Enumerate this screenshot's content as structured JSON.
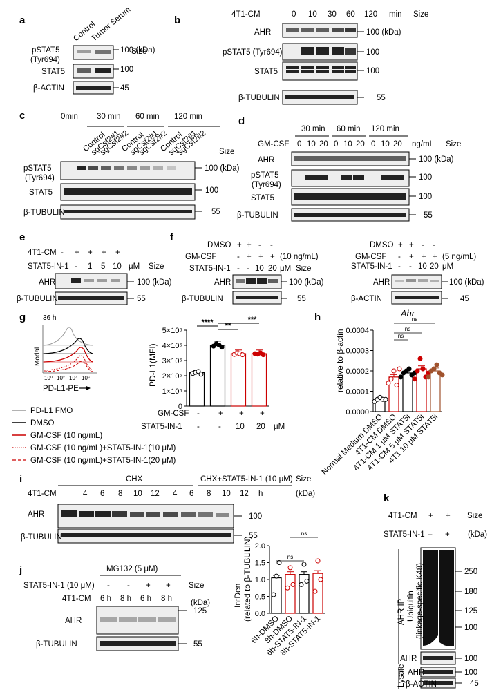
{
  "a": {
    "panel": "a",
    "cols": [
      "Control",
      "Tumor Serum"
    ],
    "size": "Size",
    "rows": [
      {
        "label": "pSTAT5",
        "sub": "(Tyr694)",
        "size": "100 (kDa)"
      },
      {
        "label": "STAT5",
        "size": "100"
      },
      {
        "label": "β-ACTIN",
        "size": "45"
      }
    ]
  },
  "b": {
    "panel": "b",
    "treat": "4T1-CM",
    "times": [
      "0",
      "10",
      "30",
      "60",
      "120"
    ],
    "unit": "min",
    "size": "Size",
    "rows": [
      {
        "label": "AHR",
        "size": "100 (kDa)"
      },
      {
        "label": "pSTAT5 (Tyr694)",
        "size": "100"
      },
      {
        "label": "STAT5",
        "size": "100"
      },
      {
        "label": "β-TUBULIN",
        "size": "55"
      }
    ]
  },
  "c": {
    "panel": "c",
    "groups": [
      "0min",
      "30 min",
      "60 min",
      "120 min"
    ],
    "lanes": [
      "Control",
      "sgCsf2#1",
      "sgCsf2#2",
      "Control",
      "sgCsf2#1",
      "sgCsf2#2",
      "Control",
      "sgCsf2#1",
      "sgCsf2#2"
    ],
    "size": "Size",
    "rows": [
      {
        "label": "pSTAT5",
        "sub": "(Tyr694)",
        "size": "100 (kDa)"
      },
      {
        "label": "STAT5",
        "size": "100"
      },
      {
        "label": "β-TUBULIN",
        "size": "55"
      }
    ]
  },
  "d": {
    "panel": "d",
    "groups": [
      "30 min",
      "60 min",
      "120 min"
    ],
    "treat": "GM-CSF",
    "doses": [
      "0",
      "10",
      "20",
      "0",
      "10",
      "20",
      "0",
      "10",
      "20"
    ],
    "unit": "ng/mL",
    "size": "Size",
    "rows": [
      {
        "label": "AHR",
        "size": "100 (kDa)"
      },
      {
        "label": "pSTAT5",
        "sub": "(Tyr694)",
        "size": "100"
      },
      {
        "label": "STAT5",
        "size": "100"
      },
      {
        "label": "β-TUBULIN",
        "size": "55"
      }
    ]
  },
  "e": {
    "panel": "e",
    "r1": "4T1-CM",
    "r1v": [
      "-",
      "+",
      "+",
      "+",
      "+"
    ],
    "r2": "STAT5-IN-1",
    "r2v": [
      "-",
      "-",
      "1",
      "5",
      "10"
    ],
    "unit": "μM",
    "size": "Size",
    "rows": [
      {
        "label": "AHR",
        "size": "100 (kDa)"
      },
      {
        "label": "β-TUBULIN",
        "size": "55"
      }
    ]
  },
  "f": {
    "panel": "f",
    "left": {
      "r1": "DMSO",
      "r1v": [
        "+",
        "+",
        "-",
        "-"
      ],
      "r2": "GM-CSF",
      "r2v": [
        "-",
        "+",
        "+",
        "+"
      ],
      "r2n": "(10 ng/mL)",
      "r3": "STAT5-IN-1",
      "r3v": [
        "-",
        "-",
        "10",
        "20"
      ],
      "unit": "μM",
      "size": "Size",
      "rows": [
        {
          "label": "AHR",
          "size": "100 (kDa)"
        },
        {
          "label": "β-TUBULIN",
          "size": "55"
        }
      ]
    },
    "right": {
      "r1": "DMSO",
      "r1v": [
        "+",
        "+",
        "-",
        "-"
      ],
      "r2": "GM-CSF",
      "r2v": [
        "-",
        "+",
        "+",
        "+"
      ],
      "r2n": "(5 ng/mL)",
      "r3": "STAT5-IN-1",
      "r3v": [
        "-",
        "-",
        "10",
        "20"
      ],
      "unit": "μM",
      "size": "Size",
      "rows": [
        {
          "label": "AHR",
          "size": "100 (kDa)"
        },
        {
          "label": "β-ACTIN",
          "size": "45"
        }
      ]
    }
  },
  "g": {
    "panel": "g",
    "time": "36 h",
    "hist_y": "Modal",
    "hist_x": "PD-L1-PE",
    "hist_ticks": [
      "10⁰",
      "10²",
      "10⁴",
      "10⁶"
    ],
    "legend": [
      "PD-L1 FMO",
      "DMSO",
      "GM-CSF (10 ng/mL)",
      "GM-CSF (10 ng/mL)+STAT5-IN-1(10 μM)",
      "GM-CSF (10 ng/mL)+STAT5-IN-1(20 μM)"
    ],
    "r1": "GM-CSF",
    "r1v": [
      "-",
      "+",
      "+",
      "+"
    ],
    "r2": "STAT5-IN-1",
    "r2v": [
      "-",
      "-",
      "10",
      "20"
    ],
    "unit": "μM",
    "sig": [
      "****",
      "**",
      "***"
    ]
  },
  "h": {
    "panel": "h",
    "sig": [
      "ns",
      "ns",
      "ns"
    ]
  },
  "i": {
    "panel": "i",
    "g1": "CHX",
    "g2": "CHX+STAT5-IN-1 (10 μM)",
    "size": "Size",
    "treat": "4T1-CM",
    "times": [
      "4",
      "6",
      "8",
      "10",
      "12",
      "4",
      "6",
      "8",
      "10",
      "12"
    ],
    "unit": "h",
    "kda": "(kDa)",
    "rows": [
      {
        "label": "AHR",
        "size": "100"
      },
      {
        "label": "β-TUBULIN",
        "size": "55"
      }
    ]
  },
  "j": {
    "panel": "j",
    "mg": "MG132 (5 μM)",
    "r1": "STAT5-IN-1 (10 μM)",
    "r1v": [
      "-",
      "-",
      "+",
      "+"
    ],
    "size": "Size",
    "r2": "4T1-CM",
    "r2v": [
      "6 h",
      "8 h",
      "6 h",
      "8 h"
    ],
    "kda": "(kDa)",
    "rows": [
      {
        "label": "AHR",
        "size": "125"
      },
      {
        "label": "β-TUBULIN",
        "size": "55"
      }
    ],
    "sig": "ns"
  },
  "k": {
    "panel": "k",
    "r1": "4T1-CM",
    "r1v": [
      "+",
      "+"
    ],
    "size": "Size",
    "r2": "STAT5-IN-1",
    "r2v": [
      "–",
      "+"
    ],
    "kda": "(kDa)",
    "ip": "AHR IP",
    "ub": "Ubiquitin",
    "ub2": "(linkage-specific K48)",
    "markers": [
      "250",
      "180",
      "125",
      "100"
    ],
    "ahr": "AHR",
    "ahr_size": "100",
    "lysate": "Lysate",
    "lys_rows": [
      {
        "label": "AHR",
        "size": "100"
      },
      {
        "label": "β-ACTIN",
        "size": "45"
      }
    ]
  },
  "chart_data": [
    {
      "type": "bar",
      "title": "",
      "ylabel": "PD-L1(MFI)",
      "ylim": [
        0,
        500000
      ],
      "yticks": [
        "0",
        "1×10⁵",
        "2×10⁵",
        "3×10⁵",
        "4×10⁵",
        "5×10⁵"
      ],
      "categories": [
        "DMSO",
        "GM-CSF",
        "GM-CSF+STAT5-IN-1 10 μM",
        "GM-CSF+STAT5-IN-1 20 μM"
      ],
      "values": [
        220000,
        400000,
        345000,
        345000
      ],
      "points": [
        [
          215000,
          222000,
          228000,
          210000
        ],
        [
          395000,
          410000,
          402000,
          388000
        ],
        [
          340000,
          350000,
          345000,
          338000
        ],
        [
          345000,
          342000,
          350000,
          338000
        ]
      ]
    },
    {
      "type": "bar",
      "title": "Ahr",
      "ylabel": "relative to β-actin",
      "ylim": [
        0,
        0.0004
      ],
      "yticks": [
        "0.0000",
        "0.0001",
        "0.0002",
        "0.0003",
        "0.0004"
      ],
      "categories": [
        "Normal Medium DMSO",
        "4T1-CM DMSO",
        "4T1-CM 1 μM STAT5i",
        "4T1-CM 5 μM STAT5i",
        "4T1 10 μM STAT5i"
      ],
      "values": [
        6e-05,
        0.00017,
        0.00019,
        0.00021,
        0.0002
      ],
      "points": [
        [
          5e-05,
          6e-05,
          7e-05,
          6e-05,
          6e-05
        ],
        [
          0.00014,
          0.00016,
          0.0002,
          0.00013,
          0.00021
        ],
        [
          0.00017,
          0.00019,
          0.0002,
          0.00021,
          0.00018,
          0.00019
        ],
        [
          0.00016,
          0.0002,
          0.00026,
          0.00021,
          0.00017,
          0.00019
        ],
        [
          0.00017,
          0.0002,
          0.00021,
          0.00023,
          0.00019,
          0.00018
        ]
      ]
    },
    {
      "type": "bar",
      "title": "",
      "ylabel": "IntDen",
      "ylabel2": "(related to β-TUBULIN)",
      "ylim": [
        0,
        2.0
      ],
      "yticks": [
        "0.0",
        "0.5",
        "1.0",
        "1.5",
        "2.0"
      ],
      "categories": [
        "6h-DMSO",
        "8h-DMSO",
        "6h-STAT5-IN-1",
        "8h-STAT5-IN-1"
      ],
      "values": [
        1.05,
        1.15,
        1.15,
        1.18
      ],
      "points": [
        [
          0.55,
          1.1,
          1.5
        ],
        [
          0.75,
          1.35,
          0.85
        ],
        [
          0.85,
          1.45,
          0.95
        ],
        [
          0.65,
          1.55,
          1.0
        ]
      ]
    }
  ]
}
